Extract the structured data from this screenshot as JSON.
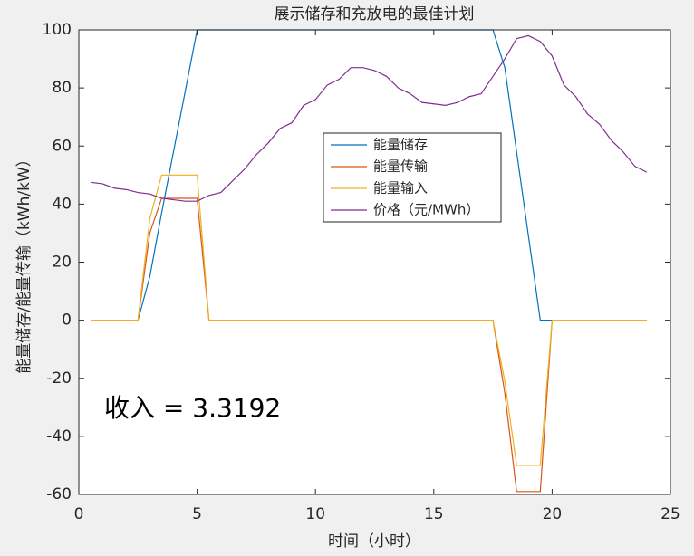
{
  "chart_data": {
    "type": "line",
    "title": "展示储存和充放电的最佳计划",
    "xlabel": "时间（小时）",
    "ylabel": "能量储存/能量传输（kWh/kW）",
    "annotation": "收入 = 3.3192",
    "x": [
      0.5,
      1,
      1.5,
      2,
      2.5,
      3,
      3.5,
      4,
      4.5,
      5,
      5.5,
      6,
      6.5,
      7,
      7.5,
      8,
      8.5,
      9,
      9.5,
      10,
      10.5,
      11,
      11.5,
      12,
      12.5,
      13,
      13.5,
      14,
      14.5,
      15,
      15.5,
      16,
      16.5,
      17,
      17.5,
      18,
      18.5,
      19,
      19.5,
      20,
      20.5,
      21,
      21.5,
      22,
      22.5,
      23,
      23.5,
      24
    ],
    "series": [
      {
        "name": "能量储存",
        "color": "#0072bd",
        "values": [
          0,
          0,
          0,
          0,
          0,
          15,
          37,
          58,
          79,
          100,
          100,
          100,
          100,
          100,
          100,
          100,
          100,
          100,
          100,
          100,
          100,
          100,
          100,
          100,
          100,
          100,
          100,
          100,
          100,
          100,
          100,
          100,
          100,
          100,
          100,
          87,
          58,
          29,
          0,
          0,
          0,
          0,
          0,
          0,
          0,
          0,
          0,
          0
        ]
      },
      {
        "name": "能量传输",
        "color": "#d95319",
        "values": [
          0,
          0,
          0,
          0,
          0,
          30,
          42,
          42,
          42,
          42,
          0,
          0,
          0,
          0,
          0,
          0,
          0,
          0,
          0,
          0,
          0,
          0,
          0,
          0,
          0,
          0,
          0,
          0,
          0,
          0,
          0,
          0,
          0,
          0,
          0,
          -25,
          -59,
          -59,
          -59,
          0,
          0,
          0,
          0,
          0,
          0,
          0,
          0,
          0
        ]
      },
      {
        "name": "能量输入",
        "color": "#edb120",
        "values": [
          0,
          0,
          0,
          0,
          0,
          35,
          50,
          50,
          50,
          50,
          0,
          0,
          0,
          0,
          0,
          0,
          0,
          0,
          0,
          0,
          0,
          0,
          0,
          0,
          0,
          0,
          0,
          0,
          0,
          0,
          0,
          0,
          0,
          0,
          0,
          -21,
          -50,
          -50,
          -50,
          0,
          0,
          0,
          0,
          0,
          0,
          0,
          0,
          0
        ]
      },
      {
        "name": "价格（元/MWh）",
        "color": "#7e2f8e",
        "values": [
          47.5,
          47,
          45.5,
          45,
          44,
          43.5,
          42,
          41.5,
          41,
          41,
          43,
          44,
          48,
          52,
          57,
          61,
          66,
          68,
          74,
          76,
          81,
          83,
          87,
          87,
          86,
          84,
          80,
          78,
          75,
          74.5,
          74,
          75,
          77,
          78,
          84,
          90,
          97,
          98,
          96,
          91,
          81,
          77,
          71,
          67.5,
          62,
          58,
          53,
          51
        ]
      }
    ],
    "xlim": [
      0,
      25
    ],
    "xticks": [
      0,
      5,
      10,
      15,
      20,
      25
    ],
    "ylim": [
      -60,
      100
    ],
    "yticks": [
      -60,
      -40,
      -20,
      0,
      20,
      40,
      60,
      80,
      100
    ]
  }
}
